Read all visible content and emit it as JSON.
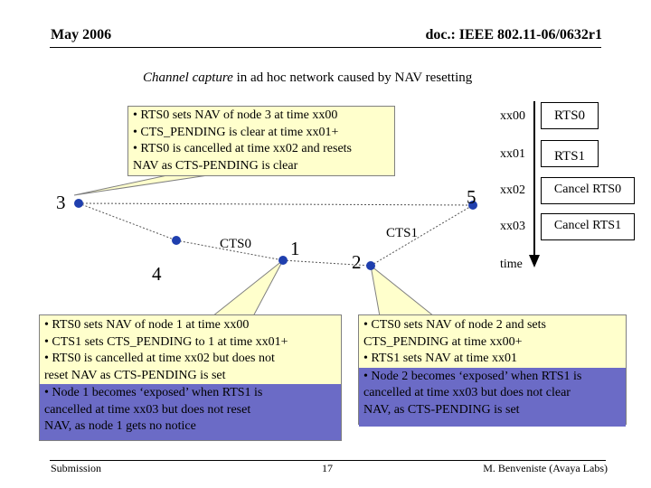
{
  "header": {
    "date": "May 2006",
    "doc_id": "doc.: IEEE 802.11-06/0632r1"
  },
  "title": {
    "italic_part": "Channel capture",
    "rest": " in ad hoc network  caused by NAV resetting"
  },
  "nodes": {
    "n1": "1",
    "n2": "2",
    "n3": "3",
    "n4": "4",
    "n5": "5"
  },
  "link_labels": {
    "cts0": "CTS0",
    "cts1": "CTS1"
  },
  "timeline": {
    "times": [
      "xx00",
      "xx01",
      "xx02",
      "xx03"
    ],
    "events": [
      "RTS0",
      "RTS1",
      "Cancel RTS0",
      "Cancel RTS1"
    ],
    "axis_label": "time"
  },
  "notes": {
    "node3": [
      "• RTS0 sets NAV of node 3 at time xx00",
      "• CTS_PENDING is clear at time xx01+",
      "• RTS0 is cancelled at time xx02 and resets",
      "NAV as CTS-PENDING is clear"
    ],
    "node1": [
      "• RTS0 sets NAV of node 1 at time xx00",
      "• CTS1 sets CTS_PENDING to 1 at time xx01+",
      "• RTS0 is cancelled at time xx02 but does not",
      "reset NAV as CTS-PENDING is set"
    ],
    "node1_highlight": [
      "• Node 1 becomes ‘exposed’ when RTS1 is",
      "cancelled at time xx03 but does not reset",
      "NAV, as node 1 gets no notice"
    ],
    "node2": [
      "• CTS0 sets NAV of node 2 and sets",
      "CTS_PENDING at time xx00+",
      "• RTS1 sets NAV at time xx01"
    ],
    "node2_highlight": [
      "• Node 2 becomes ‘exposed’ when RTS1 is",
      "cancelled at time xx03 but does not clear",
      "NAV, as CTS-PENDING is set"
    ]
  },
  "footer": {
    "left": "Submission",
    "page": "17",
    "right": "M. Benveniste (Avaya Labs)"
  },
  "colors": {
    "node_fill": "#1f3fae",
    "note_bg": "#ffffcc",
    "highlight": "#6b6bc6"
  }
}
